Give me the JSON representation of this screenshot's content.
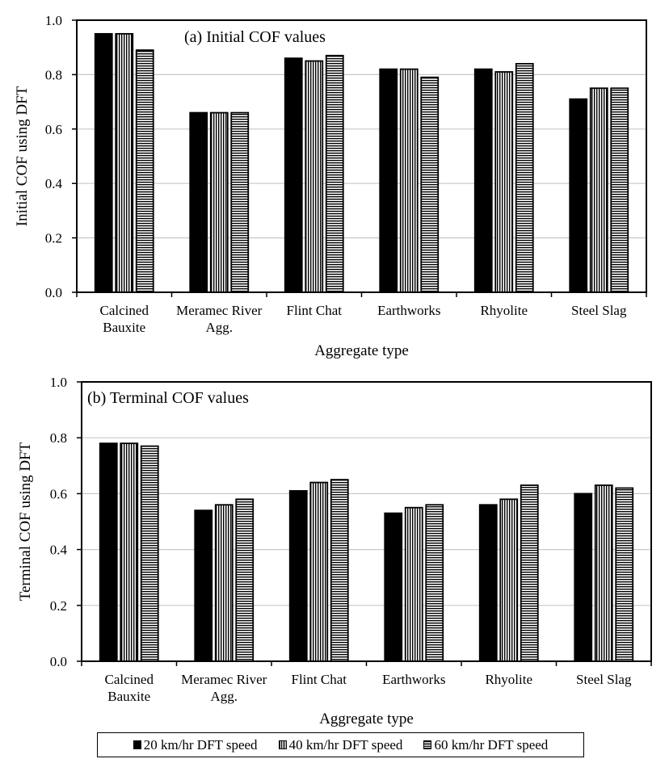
{
  "chart_data": [
    {
      "type": "bar",
      "title": "(a) Initial COF values",
      "xlabel": "Aggregate type",
      "ylabel": "Initial COF using DFT",
      "ylim": [
        0,
        1.0
      ],
      "yticks": [
        "0.0",
        "0.2",
        "0.4",
        "0.6",
        "0.8",
        "1.0"
      ],
      "grid": true,
      "categories": [
        [
          "Calcined",
          "Bauxite"
        ],
        [
          "Meramec River",
          "Agg."
        ],
        [
          "Flint Chat"
        ],
        [
          "Earthworks"
        ],
        [
          "Rhyolite"
        ],
        [
          "Steel Slag"
        ]
      ],
      "series": [
        {
          "name": "20 km/hr DFT speed",
          "values": [
            0.95,
            0.66,
            0.86,
            0.82,
            0.82,
            0.71
          ]
        },
        {
          "name": "40 km/hr DFT speed",
          "values": [
            0.95,
            0.66,
            0.85,
            0.82,
            0.81,
            0.75
          ]
        },
        {
          "name": "60 km/hr DFT speed",
          "values": [
            0.89,
            0.66,
            0.87,
            0.79,
            0.84,
            0.75
          ]
        }
      ]
    },
    {
      "type": "bar",
      "title": "(b) Terminal COF values",
      "xlabel": "Aggregate type",
      "ylabel": "Terminal COF using DFT",
      "ylim": [
        0,
        1.0
      ],
      "yticks": [
        "0.0",
        "0.2",
        "0.4",
        "0.6",
        "0.8",
        "1.0"
      ],
      "grid": true,
      "categories": [
        [
          "Calcined",
          "Bauxite"
        ],
        [
          "Meramec River",
          "Agg."
        ],
        [
          "Flint Chat"
        ],
        [
          "Earthworks"
        ],
        [
          "Rhyolite"
        ],
        [
          "Steel Slag"
        ]
      ],
      "series": [
        {
          "name": "20 km/hr DFT speed",
          "values": [
            0.78,
            0.54,
            0.61,
            0.53,
            0.56,
            0.6
          ]
        },
        {
          "name": "40 km/hr DFT speed",
          "values": [
            0.78,
            0.56,
            0.64,
            0.55,
            0.58,
            0.63
          ]
        },
        {
          "name": "60 km/hr DFT speed",
          "values": [
            0.77,
            0.58,
            0.65,
            0.56,
            0.63,
            0.62
          ]
        }
      ]
    }
  ],
  "legend": {
    "position": "bottom",
    "items": [
      {
        "label": "20 km/hr DFT speed",
        "pattern": "solid"
      },
      {
        "label": "40 km/hr DFT speed",
        "pattern": "vertical-lines"
      },
      {
        "label": "60 km/hr DFT speed",
        "pattern": "horizontal-lines"
      }
    ]
  }
}
